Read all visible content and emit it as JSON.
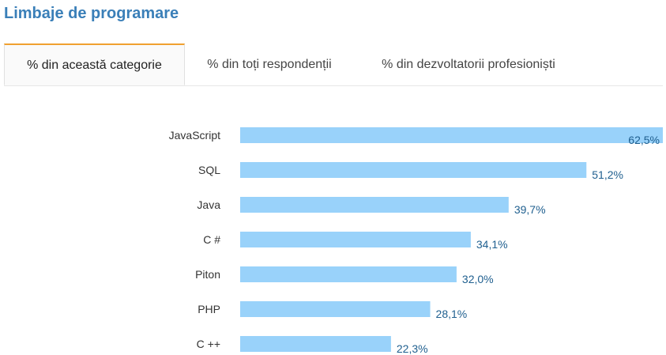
{
  "title": "Limbaje de programare",
  "tabs": [
    {
      "label": "% din această categorie",
      "active": true
    },
    {
      "label": "% din toți respondenții",
      "active": false
    },
    {
      "label": "% din dezvoltatorii profesioniști",
      "active": false
    }
  ],
  "colors": {
    "bar": "#99d2fa",
    "accent": "#f0a030",
    "title": "#3a7fb8",
    "value_text": "#1f5f8f"
  },
  "chart_data": {
    "type": "bar",
    "orientation": "horizontal",
    "categories": [
      "JavaScript",
      "SQL",
      "Java",
      "C #",
      "Piton",
      "PHP",
      "C ++"
    ],
    "values": [
      62.5,
      51.2,
      39.7,
      34.1,
      32.0,
      28.1,
      22.3
    ],
    "value_labels": [
      "62,5%",
      "51,2%",
      "39,7%",
      "34,1%",
      "32,0%",
      "28,1%",
      "22,3%"
    ],
    "xlim": [
      0,
      62.5
    ]
  }
}
